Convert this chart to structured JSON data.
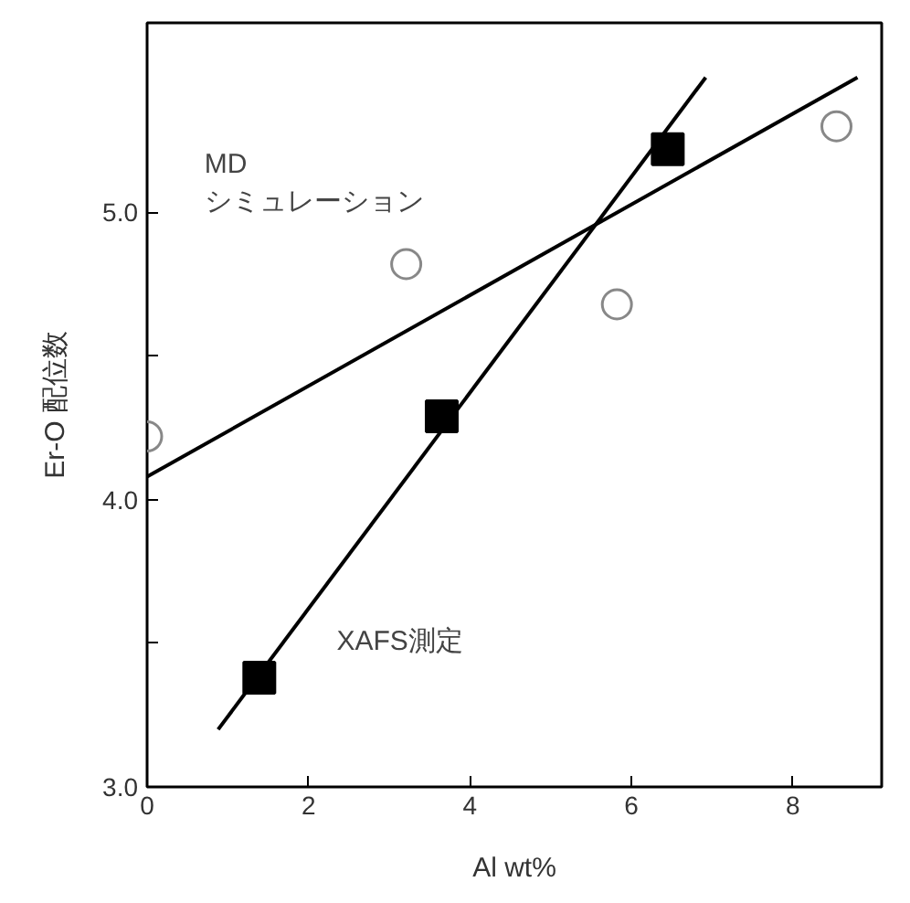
{
  "chart_data": {
    "type": "scatter",
    "xlabel": "Al wt%",
    "ylabel": "Er-O 配位数",
    "xlim": [
      0,
      9.1
    ],
    "ylim": [
      3,
      5.66
    ],
    "xticks": [
      0,
      2,
      4,
      6,
      8
    ],
    "yticks": [
      {
        "value": 3,
        "label": "3.0"
      },
      {
        "value": 3.5,
        "label": null
      },
      {
        "value": 4,
        "label": "4.0"
      },
      {
        "value": 4.5,
        "label": null
      },
      {
        "value": 5,
        "label": "5.0"
      }
    ],
    "grid": false,
    "series": [
      {
        "marker": "circle",
        "color": "#888888",
        "x": [
          0,
          3.21,
          5.82,
          8.54
        ],
        "values": [
          4.22,
          4.82,
          4.68,
          5.3
        ]
      },
      {
        "marker": "square",
        "color": "#000000",
        "x": [
          1.39,
          3.65,
          6.45
        ],
        "values": [
          3.38,
          4.29,
          5.22
        ]
      },
      {
        "type": "line",
        "color": "#000000",
        "x": [
          0,
          8.8
        ],
        "values": [
          4.08,
          5.47
        ]
      },
      {
        "type": "line",
        "color": "#000000",
        "x": [
          0.88,
          6.92
        ],
        "values": [
          3.2,
          5.47
        ]
      }
    ],
    "annotations": [
      "MD\nシミュレーション",
      "XAFS測定"
    ]
  }
}
